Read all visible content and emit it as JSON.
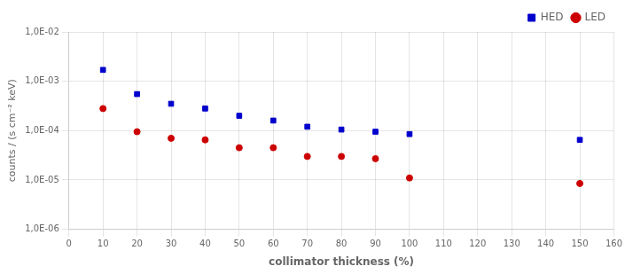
{
  "chart_data": {
    "type": "scatter",
    "x_label": "collimator thickness (%)",
    "y_label": "counts / (s cm⁻² keV)",
    "x": [
      10,
      20,
      30,
      40,
      50,
      60,
      70,
      80,
      90,
      100,
      150
    ],
    "series": [
      {
        "name": "HED",
        "color": "#0000cc",
        "marker": "square",
        "values": [
          0.0017,
          0.00055,
          0.00035,
          0.00028,
          0.0002,
          0.00016,
          0.00012,
          0.000105,
          9.5e-05,
          8.5e-05,
          6.5e-05
        ]
      },
      {
        "name": "LED",
        "color": "#cc0000",
        "marker": "circle",
        "values": [
          0.00028,
          9.5e-05,
          7e-05,
          6.5e-05,
          4.5e-05,
          4.5e-05,
          3e-05,
          3e-05,
          2.7e-05,
          1.1e-05,
          8.5e-06
        ]
      }
    ],
    "xlim": [
      0,
      160
    ],
    "xticks": [
      0,
      10,
      20,
      30,
      40,
      50,
      60,
      70,
      80,
      90,
      100,
      110,
      120,
      130,
      140,
      150,
      160
    ],
    "ylim": [
      1e-06,
      0.01
    ],
    "yticks": [
      {
        "value": 1e-06,
        "label": "1,0E-06"
      },
      {
        "value": 1e-05,
        "label": "1,0E-05"
      },
      {
        "value": 0.0001,
        "label": "1,0E-04"
      },
      {
        "value": 0.001,
        "label": "1,0E-03"
      },
      {
        "value": 0.01,
        "label": "1,0E-02"
      }
    ],
    "log": "y",
    "grid": true,
    "legend": "upper right"
  }
}
